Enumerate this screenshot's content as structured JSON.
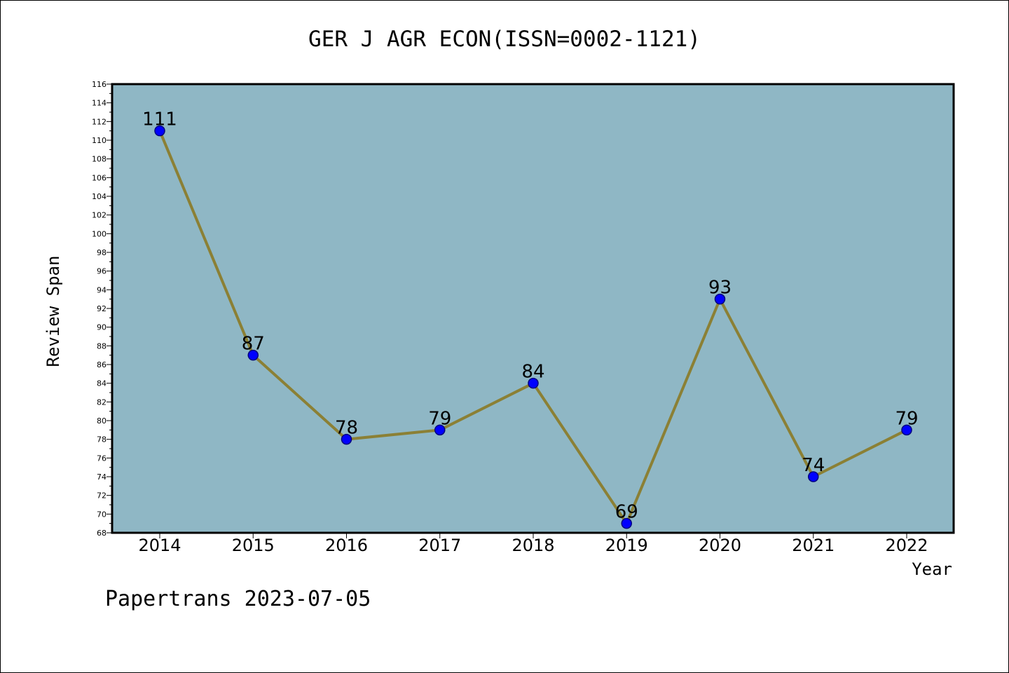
{
  "chart_data": {
    "type": "line",
    "title": "GER J AGR ECON(ISSN=0002-1121)",
    "xlabel": "Year",
    "ylabel": "Review Span",
    "x": [
      "2014",
      "2015",
      "2016",
      "2017",
      "2018",
      "2019",
      "2020",
      "2021",
      "2022"
    ],
    "series": [
      {
        "values": [
          111,
          87,
          78,
          79,
          84,
          69,
          93,
          74,
          79
        ]
      }
    ],
    "data_labels": [
      "111",
      "87",
      "78",
      "79",
      "84",
      "69",
      "93",
      "74",
      "79"
    ],
    "ylim": [
      68,
      116
    ],
    "ytick_step": 2,
    "ytick_labels": [
      "68",
      "70",
      "72",
      "74",
      "76",
      "78",
      "80",
      "82",
      "84",
      "86",
      "88",
      "90",
      "92",
      "94",
      "96",
      "98",
      "100",
      "102",
      "104",
      "106",
      "108",
      "110",
      "112",
      "114",
      "116"
    ],
    "grid": false,
    "legend": "none",
    "colors": {
      "plot_background": "#8fb7c5",
      "line": "#8b8035",
      "marker": "#0000ff",
      "marker_edge": "#000080",
      "axis": "#000000"
    }
  },
  "footer": {
    "text": "Papertrans 2023-07-05"
  }
}
